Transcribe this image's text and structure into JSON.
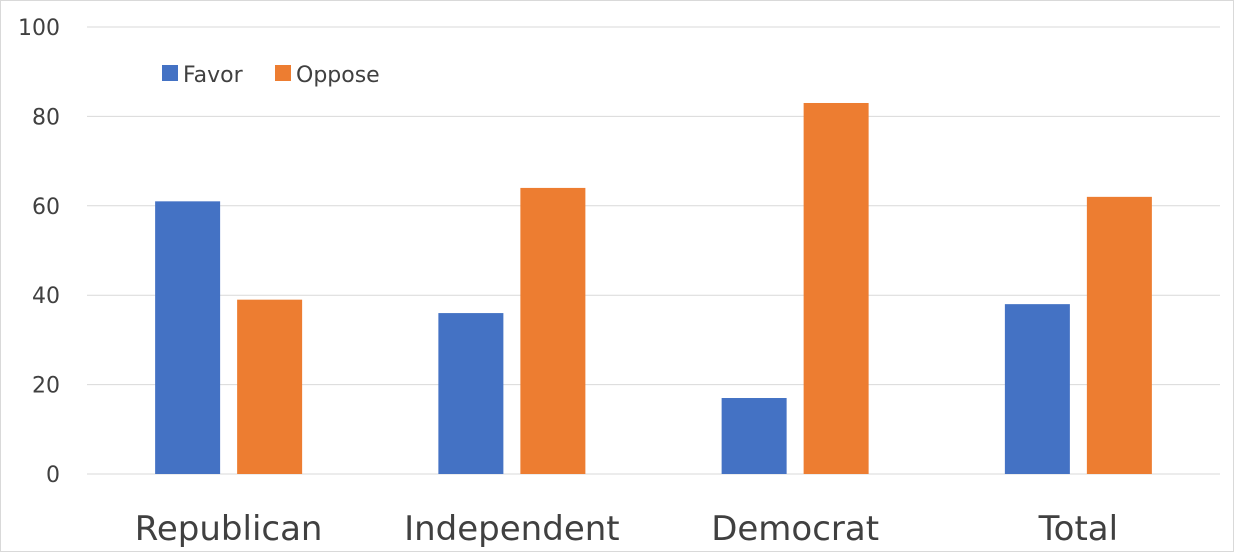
{
  "chart_data": {
    "type": "bar",
    "categories": [
      "Republican",
      "Independent",
      "Democrat",
      "Total"
    ],
    "series": [
      {
        "name": "Favor",
        "values": [
          61,
          36,
          17,
          38
        ],
        "color": "#4472C4"
      },
      {
        "name": "Oppose",
        "values": [
          39,
          64,
          83,
          62
        ],
        "color": "#ED7D31"
      }
    ],
    "title": "",
    "xlabel": "",
    "ylabel": "",
    "ylim": [
      0,
      100
    ],
    "yticks": [
      "0",
      "20",
      "40",
      "60",
      "80",
      "100"
    ],
    "grid": true,
    "legend_position": "top-left"
  }
}
